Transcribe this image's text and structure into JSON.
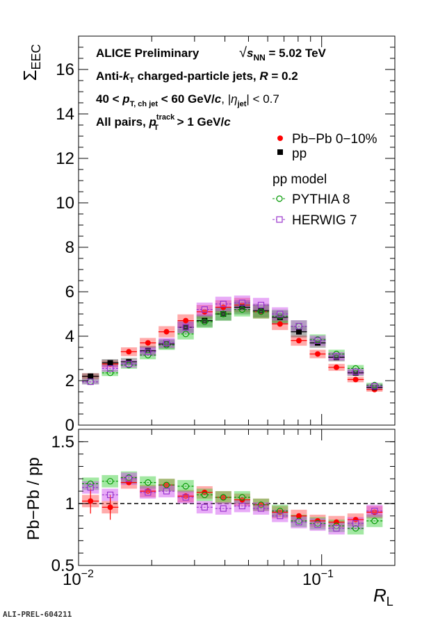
{
  "chart_data": [
    {
      "type": "scatter",
      "panel": "top",
      "ylabel": "Σ",
      "ylabel_sub": "EEC",
      "ylim": [
        0,
        17.5
      ],
      "xlim": [
        0.01,
        0.2
      ],
      "xscale": "log",
      "yticks": [
        "0",
        "2",
        "4",
        "6",
        "8",
        "10",
        "12",
        "14",
        "16"
      ],
      "annotations": {
        "line1a": "ALICE Preliminary",
        "line1b_pre": "√",
        "line1b_s": "s",
        "line1b_sub": "NN",
        "line1b_post": " = 5.02 TeV",
        "line2a": "Anti-",
        "line2b": "k",
        "line2c": "T",
        "line2d": " charged-particle jets, ",
        "line2e": "R",
        "line2f": " = 0.2",
        "line3a": "40 <  ",
        "line3b": "p",
        "line3c": "T, ch jet",
        "line3d": " < 60 GeV/",
        "line3e": "c",
        "line3f": ", |",
        "line3g": "η",
        "line3h": "jet",
        "line3i": "| < 0.7",
        "line4a": "All pairs,  ",
        "line4b": "p",
        "line4c": "track",
        "line4d": "T",
        "line4e": " > 1 GeV/",
        "line4f": "c"
      },
      "legend": {
        "pbpb": "Pb−Pb 0−10%",
        "pp": "pp",
        "model_header": "pp model",
        "pythia": "PYTHIA 8",
        "herwig": "HERWIG 7"
      },
      "x": [
        0.0112,
        0.0135,
        0.0161,
        0.0193,
        0.023,
        0.0276,
        0.033,
        0.0394,
        0.0471,
        0.0563,
        0.0674,
        0.0806,
        0.0963,
        0.115,
        0.138,
        0.165
      ],
      "series": [
        {
          "name": "Pb−Pb 0−10%",
          "color": "#ff0000",
          "marker": "filled-circle",
          "values": [
            2.2,
            2.75,
            3.3,
            3.7,
            4.2,
            4.7,
            5.1,
            5.3,
            5.4,
            5.1,
            4.55,
            3.8,
            3.2,
            2.6,
            2.05,
            1.6
          ]
        },
        {
          "name": "pp",
          "color": "#000000",
          "marker": "filled-square",
          "values": [
            2.2,
            2.8,
            2.85,
            3.35,
            3.65,
            4.4,
            4.7,
            5.0,
            5.3,
            5.15,
            4.85,
            4.2,
            3.7,
            3.05,
            2.35,
            1.7
          ]
        },
        {
          "name": "PYTHIA 8",
          "color": "#009900",
          "marker": "open-circle",
          "values": [
            1.95,
            2.35,
            2.7,
            3.15,
            3.6,
            4.1,
            4.65,
            5.0,
            5.2,
            5.1,
            4.9,
            4.45,
            3.85,
            3.2,
            2.55,
            1.8
          ]
        },
        {
          "name": "HERWIG 7",
          "color": "#9933cc",
          "marker": "open-square",
          "values": [
            1.95,
            2.55,
            2.75,
            3.3,
            3.7,
            4.4,
            5.2,
            5.45,
            5.5,
            5.4,
            5.0,
            4.45,
            3.8,
            3.1,
            2.4,
            1.75
          ]
        }
      ]
    },
    {
      "type": "scatter",
      "panel": "bottom",
      "ylabel": "Pb−Pb / pp",
      "xlabel": "R",
      "xlabel_sub": "L",
      "ylim": [
        0.5,
        1.6
      ],
      "xlim": [
        0.01,
        0.2
      ],
      "xscale": "log",
      "yticks": [
        "0.5",
        "1",
        "1.5"
      ],
      "xticks": {
        "base1": "10",
        "exp1": "−2",
        "base2": "10",
        "exp2": "−1"
      },
      "reference_line": 1,
      "x": [
        0.0112,
        0.0135,
        0.0161,
        0.0193,
        0.023,
        0.0276,
        0.033,
        0.0394,
        0.0471,
        0.0563,
        0.0674,
        0.0806,
        0.0963,
        0.115,
        0.138,
        0.165
      ],
      "series": [
        {
          "name": "Pb−Pb 0−10%",
          "color": "#ff0000",
          "marker": "filled-circle",
          "values": [
            1.02,
            0.97,
            1.17,
            1.1,
            1.15,
            1.06,
            1.09,
            1.05,
            1.03,
            0.99,
            0.93,
            0.9,
            0.86,
            0.85,
            0.87,
            0.93
          ]
        },
        {
          "name": "PYTHIA 8",
          "color": "#009900",
          "marker": "open-circle",
          "values": [
            1.16,
            1.18,
            1.21,
            1.17,
            1.15,
            1.14,
            1.07,
            1.05,
            1.05,
            0.99,
            0.94,
            0.86,
            0.84,
            0.82,
            0.8,
            0.86
          ]
        },
        {
          "name": "HERWIG 7",
          "color": "#9933cc",
          "marker": "open-square",
          "values": [
            1.13,
            1.07,
            1.2,
            1.09,
            1.1,
            1.05,
            0.97,
            0.96,
            0.98,
            0.96,
            0.9,
            0.85,
            0.83,
            0.8,
            0.84,
            0.94
          ]
        }
      ]
    }
  ],
  "footer": {
    "label": "ALI-PREL-604211"
  }
}
